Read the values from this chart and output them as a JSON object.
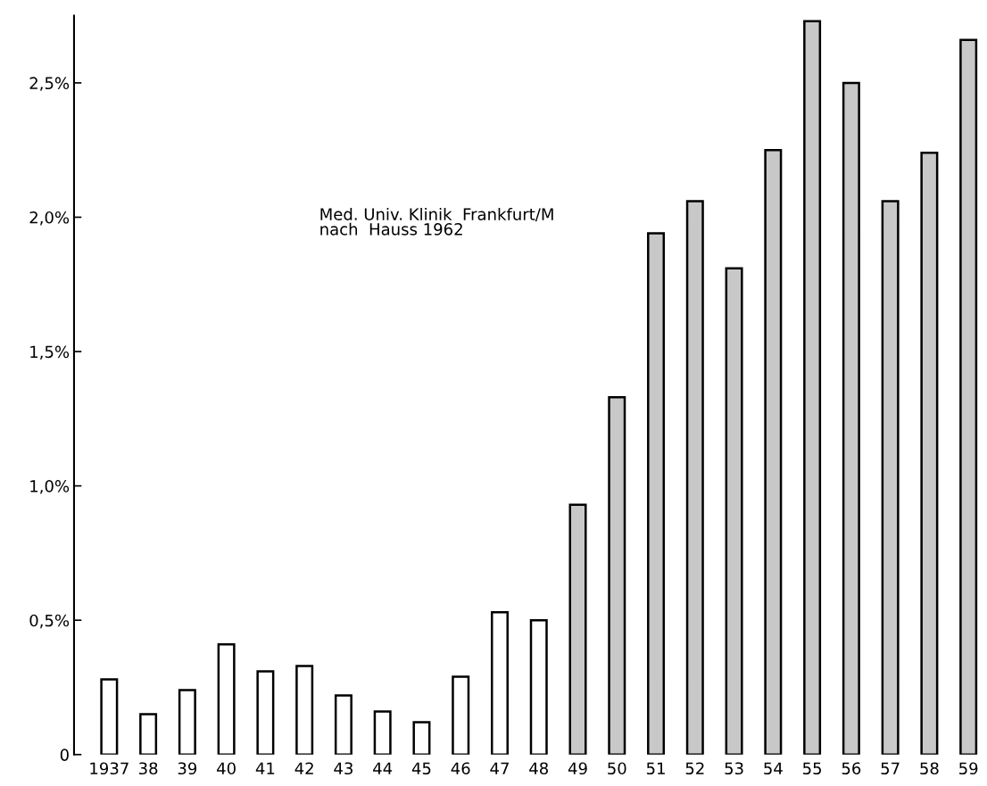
{
  "chart_data": {
    "type": "bar",
    "categories": [
      "1937",
      "38",
      "39",
      "40",
      "41",
      "42",
      "43",
      "44",
      "45",
      "46",
      "47",
      "48",
      "49",
      "50",
      "51",
      "52",
      "53",
      "54",
      "55",
      "56",
      "57",
      "58",
      "59"
    ],
    "values": [
      0.28,
      0.15,
      0.24,
      0.41,
      0.31,
      0.33,
      0.22,
      0.16,
      0.12,
      0.29,
      0.53,
      0.5,
      0.93,
      1.33,
      1.94,
      2.06,
      1.81,
      2.25,
      2.73,
      2.5,
      2.06,
      2.24,
      2.66
    ],
    "colors": [
      "#ffffff",
      "#ffffff",
      "#ffffff",
      "#ffffff",
      "#ffffff",
      "#ffffff",
      "#ffffff",
      "#ffffff",
      "#ffffff",
      "#ffffff",
      "#ffffff",
      "#ffffff",
      "#c8c8c8",
      "#c8c8c8",
      "#c8c8c8",
      "#c8c8c8",
      "#c8c8c8",
      "#c8c8c8",
      "#c8c8c8",
      "#c8c8c8",
      "#c8c8c8",
      "#c8c8c8",
      "#c8c8c8"
    ],
    "ylim": [
      0,
      2.75
    ],
    "yticks": [
      {
        "value": 0,
        "label": "0"
      },
      {
        "value": 0.5,
        "label": "0,5%"
      },
      {
        "value": 1.0,
        "label": "1,0%"
      },
      {
        "value": 1.5,
        "label": "1,5%"
      },
      {
        "value": 2.0,
        "label": "2,0%"
      },
      {
        "value": 2.5,
        "label": "2,5%"
      }
    ],
    "annotations": [
      "Med. Univ. Klinik  Frankfurt/M\nnach  Hauss 1962"
    ],
    "grid": false,
    "legend": false
  }
}
